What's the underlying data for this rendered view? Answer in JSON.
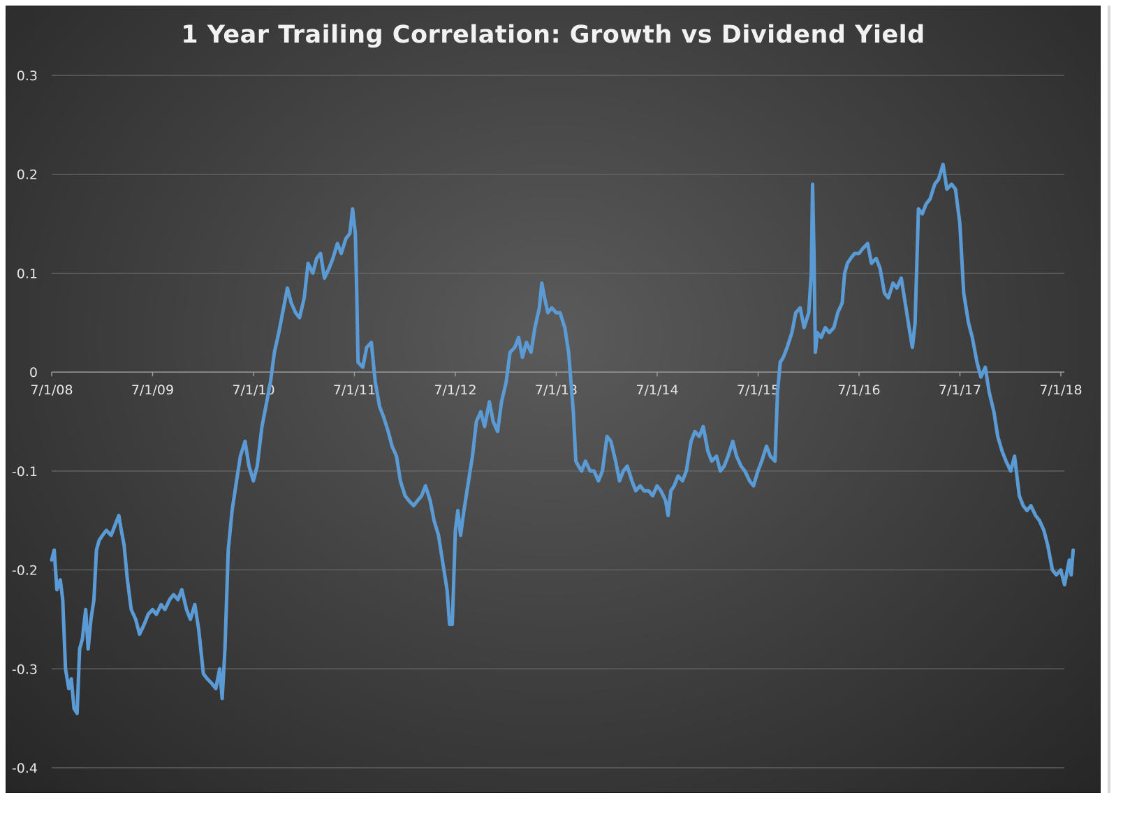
{
  "chart_data": {
    "type": "line",
    "title": "1 Year Trailing Correlation:  Growth vs Dividend Yield",
    "xlabel": "",
    "ylabel": "",
    "ylim": [
      -0.4,
      0.3
    ],
    "yticks": [
      "0.3",
      "0.2",
      "0.1",
      "0",
      "-0.1",
      "-0.2",
      "-0.3",
      "-0.4"
    ],
    "ytick_values": [
      0.3,
      0.2,
      0.1,
      0,
      -0.1,
      -0.2,
      -0.3,
      -0.4
    ],
    "xticks": [
      "7/1/08",
      "7/1/09",
      "7/1/10",
      "7/1/11",
      "7/1/12",
      "7/1/13",
      "7/1/14",
      "7/1/15",
      "7/1/16",
      "7/1/17",
      "7/1/18"
    ],
    "xlim": [
      "2008-07-01",
      "2018-08-15"
    ],
    "grid": true,
    "series_color": "#5b9bd5",
    "series": [
      {
        "values": [
          [
            "2008-07-01",
            -0.19
          ],
          [
            "2008-07-10",
            -0.18
          ],
          [
            "2008-07-20",
            -0.22
          ],
          [
            "2008-08-01",
            -0.21
          ],
          [
            "2008-08-10",
            -0.23
          ],
          [
            "2008-08-20",
            -0.3
          ],
          [
            "2008-09-01",
            -0.32
          ],
          [
            "2008-09-10",
            -0.31
          ],
          [
            "2008-09-20",
            -0.34
          ],
          [
            "2008-10-01",
            -0.345
          ],
          [
            "2008-10-10",
            -0.28
          ],
          [
            "2008-10-20",
            -0.27
          ],
          [
            "2008-11-01",
            -0.24
          ],
          [
            "2008-11-10",
            -0.28
          ],
          [
            "2008-11-20",
            -0.25
          ],
          [
            "2008-12-01",
            -0.23
          ],
          [
            "2008-12-10",
            -0.18
          ],
          [
            "2008-12-20",
            -0.17
          ],
          [
            "2009-01-01",
            -0.165
          ],
          [
            "2009-01-15",
            -0.16
          ],
          [
            "2009-02-01",
            -0.165
          ],
          [
            "2009-02-15",
            -0.155
          ],
          [
            "2009-03-01",
            -0.145
          ],
          [
            "2009-03-10",
            -0.16
          ],
          [
            "2009-03-20",
            -0.175
          ],
          [
            "2009-04-01",
            -0.21
          ],
          [
            "2009-04-15",
            -0.24
          ],
          [
            "2009-05-01",
            -0.25
          ],
          [
            "2009-05-15",
            -0.265
          ],
          [
            "2009-06-01",
            -0.255
          ],
          [
            "2009-06-15",
            -0.245
          ],
          [
            "2009-07-01",
            -0.24
          ],
          [
            "2009-07-15",
            -0.245
          ],
          [
            "2009-08-01",
            -0.235
          ],
          [
            "2009-08-15",
            -0.24
          ],
          [
            "2009-09-01",
            -0.23
          ],
          [
            "2009-09-15",
            -0.225
          ],
          [
            "2009-10-01",
            -0.23
          ],
          [
            "2009-10-15",
            -0.22
          ],
          [
            "2009-11-01",
            -0.24
          ],
          [
            "2009-11-15",
            -0.25
          ],
          [
            "2009-12-01",
            -0.235
          ],
          [
            "2009-12-15",
            -0.26
          ],
          [
            "2010-01-01",
            -0.305
          ],
          [
            "2010-01-15",
            -0.31
          ],
          [
            "2010-02-01",
            -0.315
          ],
          [
            "2010-02-15",
            -0.32
          ],
          [
            "2010-03-01",
            -0.3
          ],
          [
            "2010-03-10",
            -0.33
          ],
          [
            "2010-03-20",
            -0.28
          ],
          [
            "2010-04-01",
            -0.18
          ],
          [
            "2010-04-15",
            -0.14
          ],
          [
            "2010-05-01",
            -0.11
          ],
          [
            "2010-05-15",
            -0.085
          ],
          [
            "2010-06-01",
            -0.07
          ],
          [
            "2010-06-15",
            -0.095
          ],
          [
            "2010-07-01",
            -0.11
          ],
          [
            "2010-07-15",
            -0.095
          ],
          [
            "2010-08-01",
            -0.055
          ],
          [
            "2010-08-15",
            -0.035
          ],
          [
            "2010-09-01",
            -0.01
          ],
          [
            "2010-09-15",
            0.02
          ],
          [
            "2010-10-01",
            0.04
          ],
          [
            "2010-10-15",
            0.06
          ],
          [
            "2010-11-01",
            0.085
          ],
          [
            "2010-11-15",
            0.07
          ],
          [
            "2010-12-01",
            0.06
          ],
          [
            "2010-12-15",
            0.055
          ],
          [
            "2011-01-01",
            0.075
          ],
          [
            "2011-01-15",
            0.11
          ],
          [
            "2011-02-01",
            0.1
          ],
          [
            "2011-02-15",
            0.115
          ],
          [
            "2011-03-01",
            0.12
          ],
          [
            "2011-03-15",
            0.095
          ],
          [
            "2011-04-01",
            0.105
          ],
          [
            "2011-04-15",
            0.115
          ],
          [
            "2011-05-01",
            0.13
          ],
          [
            "2011-05-15",
            0.12
          ],
          [
            "2011-06-01",
            0.135
          ],
          [
            "2011-06-15",
            0.14
          ],
          [
            "2011-06-25",
            0.165
          ],
          [
            "2011-07-05",
            0.14
          ],
          [
            "2011-07-10",
            0.08
          ],
          [
            "2011-07-15",
            0.01
          ],
          [
            "2011-08-01",
            0.005
          ],
          [
            "2011-08-15",
            0.025
          ],
          [
            "2011-09-01",
            0.03
          ],
          [
            "2011-09-15",
            -0.01
          ],
          [
            "2011-10-01",
            -0.035
          ],
          [
            "2011-10-15",
            -0.045
          ],
          [
            "2011-11-01",
            -0.06
          ],
          [
            "2011-11-15",
            -0.075
          ],
          [
            "2011-12-01",
            -0.085
          ],
          [
            "2011-12-15",
            -0.11
          ],
          [
            "2012-01-01",
            -0.125
          ],
          [
            "2012-01-15",
            -0.13
          ],
          [
            "2012-02-01",
            -0.135
          ],
          [
            "2012-02-15",
            -0.13
          ],
          [
            "2012-03-01",
            -0.125
          ],
          [
            "2012-03-15",
            -0.115
          ],
          [
            "2012-04-01",
            -0.13
          ],
          [
            "2012-04-15",
            -0.15
          ],
          [
            "2012-05-01",
            -0.165
          ],
          [
            "2012-05-15",
            -0.19
          ],
          [
            "2012-06-01",
            -0.22
          ],
          [
            "2012-06-10",
            -0.255
          ],
          [
            "2012-06-20",
            -0.255
          ],
          [
            "2012-07-01",
            -0.16
          ],
          [
            "2012-07-10",
            -0.14
          ],
          [
            "2012-07-20",
            -0.165
          ],
          [
            "2012-08-01",
            -0.14
          ],
          [
            "2012-08-15",
            -0.115
          ],
          [
            "2012-09-01",
            -0.085
          ],
          [
            "2012-09-15",
            -0.05
          ],
          [
            "2012-10-01",
            -0.04
          ],
          [
            "2012-10-15",
            -0.055
          ],
          [
            "2012-11-01",
            -0.03
          ],
          [
            "2012-11-15",
            -0.05
          ],
          [
            "2012-12-01",
            -0.06
          ],
          [
            "2012-12-15",
            -0.03
          ],
          [
            "2013-01-01",
            -0.01
          ],
          [
            "2013-01-15",
            0.02
          ],
          [
            "2013-02-01",
            0.025
          ],
          [
            "2013-02-15",
            0.035
          ],
          [
            "2013-03-01",
            0.015
          ],
          [
            "2013-03-15",
            0.03
          ],
          [
            "2013-04-01",
            0.02
          ],
          [
            "2013-04-15",
            0.045
          ],
          [
            "2013-05-01",
            0.065
          ],
          [
            "2013-05-10",
            0.09
          ],
          [
            "2013-05-20",
            0.075
          ],
          [
            "2013-06-01",
            0.06
          ],
          [
            "2013-06-15",
            0.065
          ],
          [
            "2013-07-01",
            0.06
          ],
          [
            "2013-07-15",
            0.06
          ],
          [
            "2013-08-01",
            0.045
          ],
          [
            "2013-08-15",
            0.02
          ],
          [
            "2013-09-01",
            -0.04
          ],
          [
            "2013-09-10",
            -0.09
          ],
          [
            "2013-09-20",
            -0.095
          ],
          [
            "2013-10-01",
            -0.1
          ],
          [
            "2013-10-15",
            -0.09
          ],
          [
            "2013-11-01",
            -0.1
          ],
          [
            "2013-11-15",
            -0.1
          ],
          [
            "2013-12-01",
            -0.11
          ],
          [
            "2013-12-15",
            -0.1
          ],
          [
            "2014-01-01",
            -0.065
          ],
          [
            "2014-01-15",
            -0.07
          ],
          [
            "2014-02-01",
            -0.09
          ],
          [
            "2014-02-15",
            -0.11
          ],
          [
            "2014-03-01",
            -0.1
          ],
          [
            "2014-03-15",
            -0.095
          ],
          [
            "2014-04-01",
            -0.11
          ],
          [
            "2014-04-15",
            -0.12
          ],
          [
            "2014-05-01",
            -0.115
          ],
          [
            "2014-05-15",
            -0.12
          ],
          [
            "2014-06-01",
            -0.12
          ],
          [
            "2014-06-15",
            -0.125
          ],
          [
            "2014-07-01",
            -0.115
          ],
          [
            "2014-07-15",
            -0.12
          ],
          [
            "2014-08-01",
            -0.13
          ],
          [
            "2014-08-10",
            -0.145
          ],
          [
            "2014-08-20",
            -0.12
          ],
          [
            "2014-09-01",
            -0.115
          ],
          [
            "2014-09-15",
            -0.105
          ],
          [
            "2014-10-01",
            -0.11
          ],
          [
            "2014-10-15",
            -0.1
          ],
          [
            "2014-11-01",
            -0.07
          ],
          [
            "2014-11-15",
            -0.06
          ],
          [
            "2014-12-01",
            -0.065
          ],
          [
            "2014-12-15",
            -0.055
          ],
          [
            "2015-01-01",
            -0.08
          ],
          [
            "2015-01-15",
            -0.09
          ],
          [
            "2015-02-01",
            -0.085
          ],
          [
            "2015-02-15",
            -0.1
          ],
          [
            "2015-03-01",
            -0.095
          ],
          [
            "2015-03-15",
            -0.085
          ],
          [
            "2015-04-01",
            -0.07
          ],
          [
            "2015-04-15",
            -0.085
          ],
          [
            "2015-05-01",
            -0.095
          ],
          [
            "2015-05-15",
            -0.1
          ],
          [
            "2015-06-01",
            -0.11
          ],
          [
            "2015-06-15",
            -0.115
          ],
          [
            "2015-07-01",
            -0.1
          ],
          [
            "2015-07-15",
            -0.09
          ],
          [
            "2015-08-01",
            -0.075
          ],
          [
            "2015-08-15",
            -0.085
          ],
          [
            "2015-09-01",
            -0.09
          ],
          [
            "2015-09-10",
            -0.02
          ],
          [
            "2015-09-20",
            0.01
          ],
          [
            "2015-10-01",
            0.015
          ],
          [
            "2015-10-15",
            0.025
          ],
          [
            "2015-11-01",
            0.04
          ],
          [
            "2015-11-15",
            0.06
          ],
          [
            "2015-12-01",
            0.065
          ],
          [
            "2015-12-15",
            0.045
          ],
          [
            "2016-01-01",
            0.06
          ],
          [
            "2016-01-10",
            0.1
          ],
          [
            "2016-01-15",
            0.19
          ],
          [
            "2016-01-20",
            0.12
          ],
          [
            "2016-01-25",
            0.02
          ],
          [
            "2016-02-01",
            0.04
          ],
          [
            "2016-02-15",
            0.035
          ],
          [
            "2016-03-01",
            0.045
          ],
          [
            "2016-03-15",
            0.04
          ],
          [
            "2016-04-01",
            0.045
          ],
          [
            "2016-04-15",
            0.06
          ],
          [
            "2016-05-01",
            0.07
          ],
          [
            "2016-05-10",
            0.1
          ],
          [
            "2016-05-20",
            0.11
          ],
          [
            "2016-06-01",
            0.115
          ],
          [
            "2016-06-15",
            0.12
          ],
          [
            "2016-07-01",
            0.12
          ],
          [
            "2016-07-15",
            0.125
          ],
          [
            "2016-08-01",
            0.13
          ],
          [
            "2016-08-15",
            0.11
          ],
          [
            "2016-09-01",
            0.115
          ],
          [
            "2016-09-15",
            0.105
          ],
          [
            "2016-10-01",
            0.08
          ],
          [
            "2016-10-15",
            0.075
          ],
          [
            "2016-11-01",
            0.09
          ],
          [
            "2016-11-15",
            0.085
          ],
          [
            "2016-12-01",
            0.095
          ],
          [
            "2016-12-15",
            0.07
          ],
          [
            "2017-01-01",
            0.04
          ],
          [
            "2017-01-10",
            0.025
          ],
          [
            "2017-01-20",
            0.05
          ],
          [
            "2017-02-01",
            0.165
          ],
          [
            "2017-02-15",
            0.16
          ],
          [
            "2017-03-01",
            0.17
          ],
          [
            "2017-03-15",
            0.175
          ],
          [
            "2017-04-01",
            0.19
          ],
          [
            "2017-04-15",
            0.195
          ],
          [
            "2017-05-01",
            0.21
          ],
          [
            "2017-05-15",
            0.185
          ],
          [
            "2017-06-01",
            0.19
          ],
          [
            "2017-06-15",
            0.185
          ],
          [
            "2017-07-01",
            0.15
          ],
          [
            "2017-07-15",
            0.08
          ],
          [
            "2017-08-01",
            0.05
          ],
          [
            "2017-08-15",
            0.035
          ],
          [
            "2017-09-01",
            0.01
          ],
          [
            "2017-09-15",
            -0.005
          ],
          [
            "2017-10-01",
            0.005
          ],
          [
            "2017-10-15",
            -0.02
          ],
          [
            "2017-11-01",
            -0.04
          ],
          [
            "2017-11-15",
            -0.065
          ],
          [
            "2017-12-01",
            -0.08
          ],
          [
            "2017-12-15",
            -0.09
          ],
          [
            "2018-01-01",
            -0.1
          ],
          [
            "2018-01-15",
            -0.085
          ],
          [
            "2018-02-01",
            -0.125
          ],
          [
            "2018-02-15",
            -0.135
          ],
          [
            "2018-03-01",
            -0.14
          ],
          [
            "2018-03-15",
            -0.135
          ],
          [
            "2018-04-01",
            -0.145
          ],
          [
            "2018-04-15",
            -0.15
          ],
          [
            "2018-05-01",
            -0.16
          ],
          [
            "2018-05-15",
            -0.175
          ],
          [
            "2018-06-01",
            -0.2
          ],
          [
            "2018-06-15",
            -0.205
          ],
          [
            "2018-07-01",
            -0.2
          ],
          [
            "2018-07-15",
            -0.215
          ],
          [
            "2018-07-25",
            -0.2
          ],
          [
            "2018-08-01",
            -0.19
          ],
          [
            "2018-08-08",
            -0.205
          ],
          [
            "2018-08-15",
            -0.18
          ]
        ]
      }
    ]
  }
}
